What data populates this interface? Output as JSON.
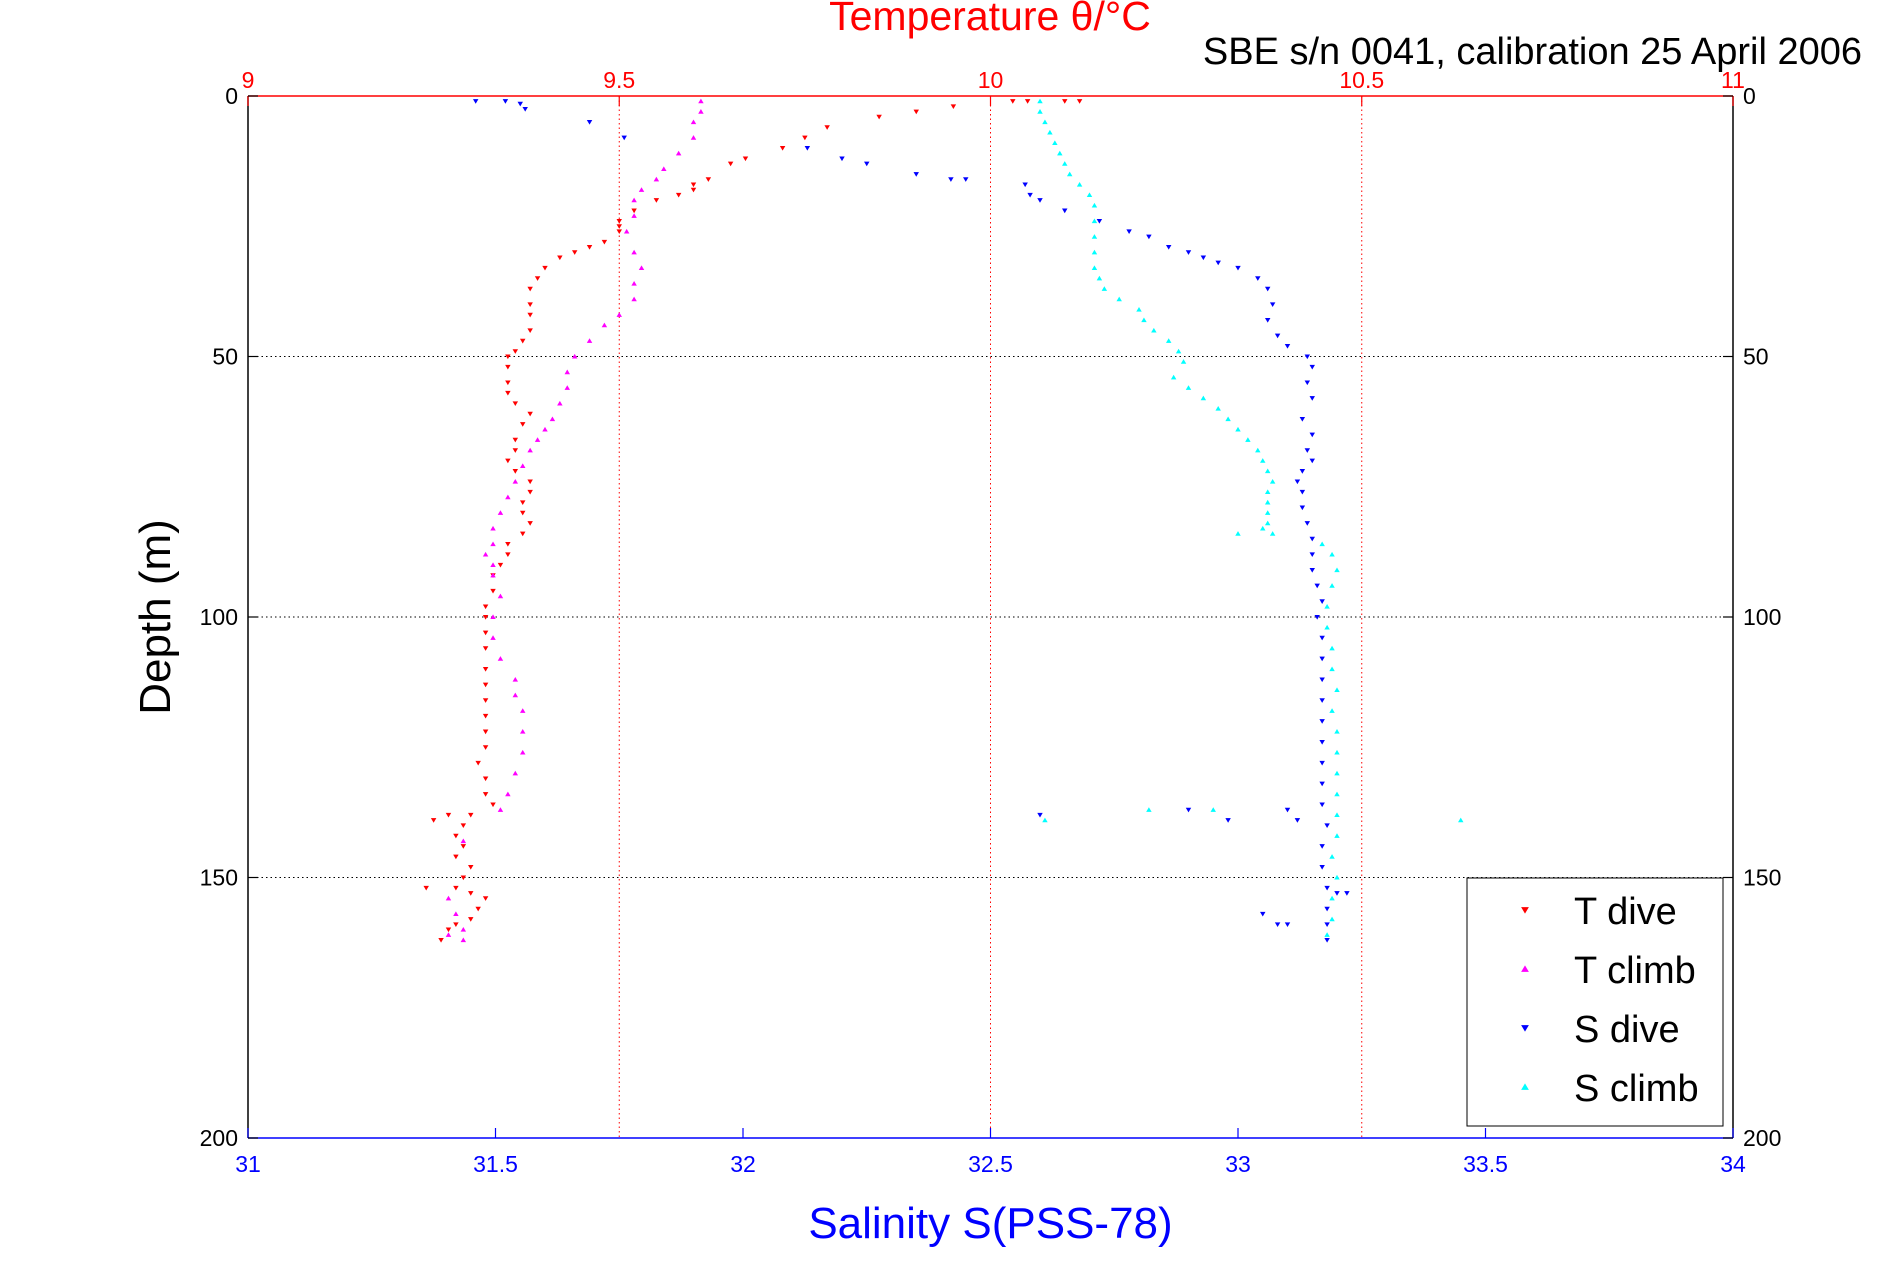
{
  "chart_data": {
    "type": "scatter",
    "title": "Temperature θ/°C",
    "subtitle": "SBE s/n 0041, calibration 25 April 2006",
    "xlabel_bottom": "Salinity S(PSS-78)",
    "ylabel": "Depth (m)",
    "x_top": {
      "min": 9,
      "max": 11,
      "ticks": [
        9,
        9.5,
        10,
        10.5,
        11
      ],
      "tick_labels": [
        "9",
        "9.5",
        "10",
        "10.5",
        "11"
      ]
    },
    "x_bottom": {
      "min": 31,
      "max": 34,
      "ticks": [
        31,
        31.5,
        32,
        32.5,
        33,
        33.5,
        34
      ],
      "tick_labels": [
        "31",
        "31.5",
        "32",
        "32.5",
        "33",
        "33.5",
        "34"
      ]
    },
    "y": {
      "min": 0,
      "max": 200,
      "reversed": true,
      "ticks": [
        0,
        50,
        100,
        150,
        200
      ],
      "tick_labels": [
        "0",
        "50",
        "100",
        "150",
        "200"
      ]
    },
    "grid": {
      "x_top": true,
      "y": true
    },
    "legend": {
      "placement": "bottom-right",
      "entries": [
        "T dive",
        "T climb",
        "S dive",
        "S climb"
      ]
    },
    "colors": {
      "title": "#ff0000",
      "bottom_axis": "#0000ff",
      "T dive": "#ff0000",
      "T climb": "#ff00ff",
      "S dive": "#0000ff",
      "S climb": "#00ffff"
    },
    "series": [
      {
        "name": "T dive",
        "axis": "top",
        "marker": "triangle-down",
        "points": [
          [
            10.12,
            1
          ],
          [
            10.1,
            1
          ],
          [
            10.05,
            1
          ],
          [
            10.03,
            1
          ],
          [
            9.95,
            2
          ],
          [
            9.9,
            3
          ],
          [
            9.85,
            4
          ],
          [
            9.78,
            6
          ],
          [
            9.75,
            8
          ],
          [
            9.72,
            10
          ],
          [
            9.67,
            12
          ],
          [
            9.65,
            13
          ],
          [
            9.62,
            16
          ],
          [
            9.6,
            17
          ],
          [
            9.6,
            18
          ],
          [
            9.58,
            19
          ],
          [
            9.55,
            20
          ],
          [
            9.52,
            22
          ],
          [
            9.5,
            24
          ],
          [
            9.5,
            25
          ],
          [
            9.5,
            26
          ],
          [
            9.48,
            28
          ],
          [
            9.46,
            29
          ],
          [
            9.44,
            30
          ],
          [
            9.42,
            31
          ],
          [
            9.4,
            33
          ],
          [
            9.39,
            35
          ],
          [
            9.38,
            37
          ],
          [
            9.38,
            40
          ],
          [
            9.38,
            42
          ],
          [
            9.38,
            45
          ],
          [
            9.37,
            47
          ],
          [
            9.36,
            49
          ],
          [
            9.35,
            50
          ],
          [
            9.35,
            52
          ],
          [
            9.35,
            55
          ],
          [
            9.35,
            57
          ],
          [
            9.36,
            59
          ],
          [
            9.38,
            61
          ],
          [
            9.37,
            63
          ],
          [
            9.36,
            66
          ],
          [
            9.36,
            68
          ],
          [
            9.35,
            70
          ],
          [
            9.36,
            72
          ],
          [
            9.38,
            74
          ],
          [
            9.38,
            76
          ],
          [
            9.37,
            78
          ],
          [
            9.37,
            80
          ],
          [
            9.38,
            82
          ],
          [
            9.37,
            84
          ],
          [
            9.35,
            86
          ],
          [
            9.35,
            88
          ],
          [
            9.34,
            90
          ],
          [
            9.33,
            92
          ],
          [
            9.33,
            95
          ],
          [
            9.32,
            98
          ],
          [
            9.32,
            100
          ],
          [
            9.32,
            103
          ],
          [
            9.32,
            106
          ],
          [
            9.32,
            110
          ],
          [
            9.32,
            113
          ],
          [
            9.32,
            116
          ],
          [
            9.32,
            119
          ],
          [
            9.32,
            122
          ],
          [
            9.32,
            125
          ],
          [
            9.31,
            128
          ],
          [
            9.32,
            131
          ],
          [
            9.32,
            134
          ],
          [
            9.33,
            136
          ],
          [
            9.27,
            138
          ],
          [
            9.3,
            138
          ],
          [
            9.25,
            139
          ],
          [
            9.29,
            140
          ],
          [
            9.28,
            142
          ],
          [
            9.29,
            144
          ],
          [
            9.28,
            146
          ],
          [
            9.3,
            148
          ],
          [
            9.29,
            150
          ],
          [
            9.28,
            152
          ],
          [
            9.24,
            152
          ],
          [
            9.3,
            153
          ],
          [
            9.32,
            154
          ],
          [
            9.31,
            156
          ],
          [
            9.3,
            158
          ],
          [
            9.28,
            159
          ],
          [
            9.27,
            160
          ],
          [
            9.26,
            162
          ]
        ]
      },
      {
        "name": "T climb",
        "axis": "top",
        "marker": "triangle-up",
        "points": [
          [
            9.61,
            1
          ],
          [
            9.61,
            3
          ],
          [
            9.6,
            5
          ],
          [
            9.6,
            8
          ],
          [
            9.58,
            11
          ],
          [
            9.56,
            14
          ],
          [
            9.55,
            16
          ],
          [
            9.53,
            18
          ],
          [
            9.52,
            20
          ],
          [
            9.52,
            23
          ],
          [
            9.51,
            26
          ],
          [
            9.52,
            30
          ],
          [
            9.53,
            33
          ],
          [
            9.52,
            36
          ],
          [
            9.52,
            39
          ],
          [
            9.5,
            42
          ],
          [
            9.48,
            44
          ],
          [
            9.46,
            47
          ],
          [
            9.44,
            50
          ],
          [
            9.43,
            53
          ],
          [
            9.43,
            56
          ],
          [
            9.42,
            59
          ],
          [
            9.41,
            62
          ],
          [
            9.4,
            64
          ],
          [
            9.39,
            66
          ],
          [
            9.38,
            68
          ],
          [
            9.37,
            71
          ],
          [
            9.36,
            74
          ],
          [
            9.35,
            77
          ],
          [
            9.34,
            80
          ],
          [
            9.33,
            83
          ],
          [
            9.33,
            86
          ],
          [
            9.32,
            88
          ],
          [
            9.33,
            90
          ],
          [
            9.33,
            92
          ],
          [
            9.34,
            96
          ],
          [
            9.33,
            100
          ],
          [
            9.33,
            104
          ],
          [
            9.34,
            108
          ],
          [
            9.36,
            112
          ],
          [
            9.36,
            115
          ],
          [
            9.37,
            118
          ],
          [
            9.37,
            122
          ],
          [
            9.37,
            126
          ],
          [
            9.36,
            130
          ],
          [
            9.35,
            134
          ],
          [
            9.34,
            137
          ],
          [
            9.29,
            143
          ],
          [
            9.27,
            154
          ],
          [
            9.28,
            157
          ],
          [
            9.29,
            160
          ],
          [
            9.27,
            161
          ],
          [
            9.29,
            162
          ]
        ]
      },
      {
        "name": "S dive",
        "axis": "bottom",
        "marker": "triangle-down",
        "points": [
          [
            31.46,
            1
          ],
          [
            31.52,
            1
          ],
          [
            31.55,
            1.5
          ],
          [
            31.56,
            2.5
          ],
          [
            31.69,
            5
          ],
          [
            31.76,
            8
          ],
          [
            32.13,
            10
          ],
          [
            32.2,
            12
          ],
          [
            32.25,
            13
          ],
          [
            32.35,
            15
          ],
          [
            32.42,
            16
          ],
          [
            32.45,
            16
          ],
          [
            32.57,
            17
          ],
          [
            32.58,
            19
          ],
          [
            32.6,
            20
          ],
          [
            32.65,
            22
          ],
          [
            32.72,
            24
          ],
          [
            32.78,
            26
          ],
          [
            32.82,
            27
          ],
          [
            32.86,
            29
          ],
          [
            32.9,
            30
          ],
          [
            32.93,
            31
          ],
          [
            32.96,
            32
          ],
          [
            33,
            33
          ],
          [
            33.04,
            35
          ],
          [
            33.06,
            37
          ],
          [
            33.07,
            40
          ],
          [
            33.06,
            43
          ],
          [
            33.08,
            46
          ],
          [
            33.1,
            48
          ],
          [
            33.14,
            50
          ],
          [
            33.15,
            52
          ],
          [
            33.14,
            55
          ],
          [
            33.15,
            58
          ],
          [
            33.13,
            62
          ],
          [
            33.15,
            65
          ],
          [
            33.14,
            68
          ],
          [
            33.15,
            70
          ],
          [
            33.13,
            72
          ],
          [
            33.12,
            74
          ],
          [
            33.13,
            76
          ],
          [
            33.13,
            79
          ],
          [
            33.14,
            82
          ],
          [
            33.15,
            85
          ],
          [
            33.15,
            88
          ],
          [
            33.15,
            91
          ],
          [
            33.16,
            94
          ],
          [
            33.17,
            97
          ],
          [
            33.16,
            100
          ],
          [
            33.17,
            104
          ],
          [
            33.17,
            108
          ],
          [
            33.17,
            112
          ],
          [
            33.17,
            116
          ],
          [
            33.17,
            120
          ],
          [
            33.17,
            124
          ],
          [
            33.17,
            128
          ],
          [
            33.17,
            132
          ],
          [
            33.17,
            136
          ],
          [
            33.18,
            140
          ],
          [
            33.17,
            144
          ],
          [
            33.17,
            148
          ],
          [
            33.18,
            152
          ],
          [
            33.2,
            153
          ],
          [
            33.22,
            153
          ],
          [
            33.18,
            156
          ],
          [
            33.18,
            159
          ],
          [
            33.18,
            162
          ],
          [
            32.6,
            138
          ],
          [
            32.9,
            137
          ],
          [
            32.98,
            139
          ],
          [
            33.1,
            137
          ],
          [
            33.12,
            139
          ],
          [
            33.05,
            157
          ],
          [
            33.08,
            159
          ],
          [
            33.1,
            159
          ]
        ]
      },
      {
        "name": "S climb",
        "axis": "bottom",
        "marker": "triangle-up",
        "points": [
          [
            32.6,
            1
          ],
          [
            32.6,
            3
          ],
          [
            32.61,
            5
          ],
          [
            32.62,
            7
          ],
          [
            32.63,
            9
          ],
          [
            32.64,
            11
          ],
          [
            32.65,
            13
          ],
          [
            32.66,
            15
          ],
          [
            32.68,
            17
          ],
          [
            32.7,
            19
          ],
          [
            32.71,
            21
          ],
          [
            32.71,
            24
          ],
          [
            32.71,
            27
          ],
          [
            32.71,
            30
          ],
          [
            32.71,
            33
          ],
          [
            32.72,
            35
          ],
          [
            32.73,
            37
          ],
          [
            32.76,
            39
          ],
          [
            32.8,
            41
          ],
          [
            32.81,
            43
          ],
          [
            32.83,
            45
          ],
          [
            32.86,
            47
          ],
          [
            32.88,
            49
          ],
          [
            32.89,
            51
          ],
          [
            32.87,
            54
          ],
          [
            32.9,
            56
          ],
          [
            32.93,
            58
          ],
          [
            32.96,
            60
          ],
          [
            32.98,
            62
          ],
          [
            33,
            64
          ],
          [
            33.02,
            66
          ],
          [
            33.04,
            68
          ],
          [
            33.05,
            70
          ],
          [
            33.06,
            72
          ],
          [
            33.07,
            74
          ],
          [
            33.06,
            76
          ],
          [
            33.06,
            78
          ],
          [
            33.06,
            80
          ],
          [
            33.06,
            82
          ],
          [
            33.05,
            83
          ],
          [
            33,
            84
          ],
          [
            33.07,
            84
          ],
          [
            33.17,
            86
          ],
          [
            33.19,
            88
          ],
          [
            33.2,
            91
          ],
          [
            33.19,
            94
          ],
          [
            33.18,
            98
          ],
          [
            33.18,
            102
          ],
          [
            33.19,
            106
          ],
          [
            33.19,
            110
          ],
          [
            33.2,
            114
          ],
          [
            33.19,
            118
          ],
          [
            33.2,
            122
          ],
          [
            33.2,
            126
          ],
          [
            33.2,
            130
          ],
          [
            33.2,
            134
          ],
          [
            33.2,
            138
          ],
          [
            33.2,
            142
          ],
          [
            33.19,
            146
          ],
          [
            33.2,
            150
          ],
          [
            33.19,
            154
          ],
          [
            33.19,
            158
          ],
          [
            33.18,
            161
          ],
          [
            32.82,
            137
          ],
          [
            32.95,
            137
          ],
          [
            33.45,
            139
          ],
          [
            32.61,
            139
          ]
        ]
      }
    ]
  }
}
